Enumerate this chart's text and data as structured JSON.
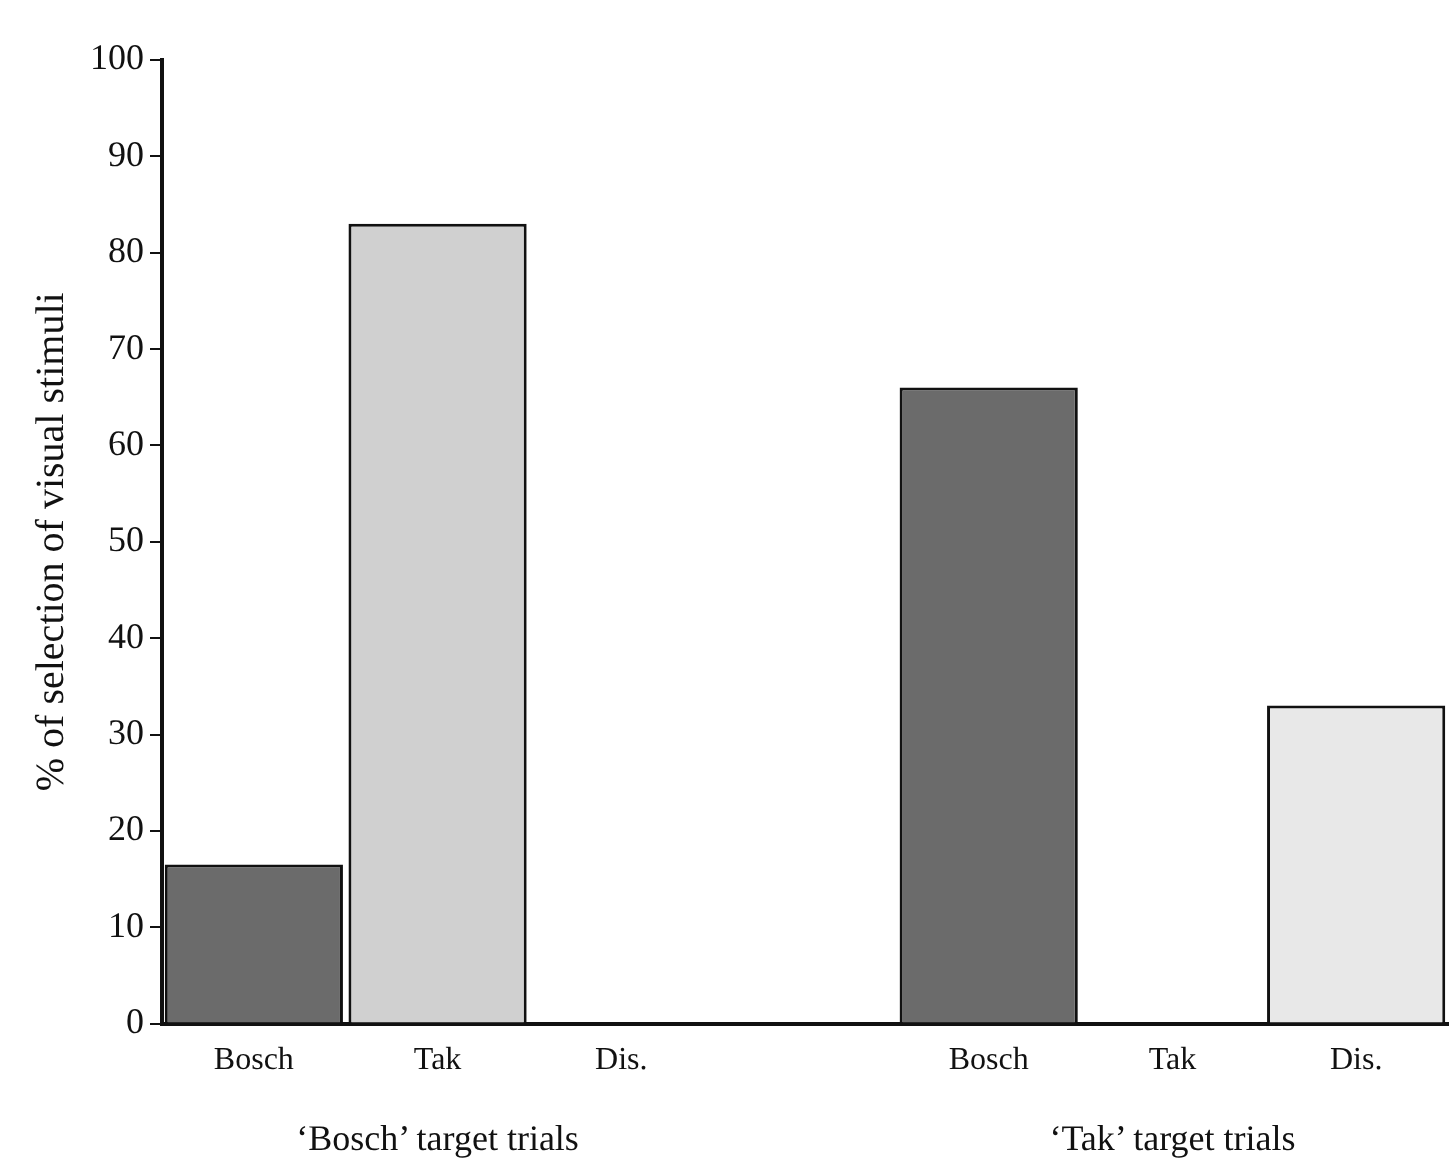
{
  "chart_data": {
    "type": "bar",
    "ylabel": "% of selection of visual stimuli",
    "categories": [
      "Bosch",
      "Tak",
      "Dis.",
      null,
      "Bosch",
      "Tak",
      "Dis."
    ],
    "values": [
      16.5,
      83,
      0,
      null,
      66,
      0,
      33
    ],
    "colors": [
      "#6b6b6b",
      "#d0d0d0",
      "#e8e8e8",
      null,
      "#6b6b6b",
      "#d0d0d0",
      "#e8e8e8"
    ],
    "ylim": [
      0,
      100
    ],
    "yticks": [
      0,
      10,
      20,
      30,
      40,
      50,
      60,
      70,
      80,
      90,
      100
    ],
    "grid": false,
    "legend": false,
    "annotations": [
      "‘Bosch’ target trials",
      "‘Tak’ target trials"
    ]
  }
}
